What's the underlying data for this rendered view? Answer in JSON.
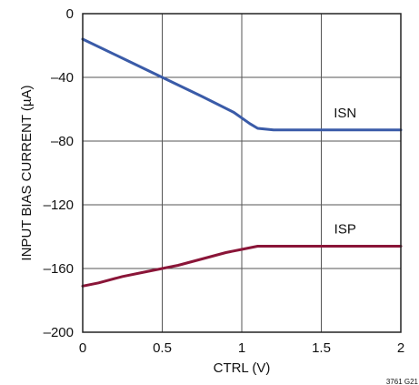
{
  "figure_id": "3761 G21",
  "chart_data": {
    "type": "line",
    "title": "",
    "xlabel": "CTRL (V)",
    "ylabel": "INPUT BIAS CURRENT (µA)",
    "xlim": [
      0,
      2
    ],
    "ylim": [
      -200,
      0
    ],
    "x_ticks": [
      0,
      0.5,
      1,
      1.5,
      2
    ],
    "x_tick_labels": [
      "0",
      "0.5",
      "1",
      "1.5",
      "2"
    ],
    "y_ticks": [
      0,
      -40,
      -80,
      -120,
      -160,
      -200
    ],
    "y_tick_labels": [
      "0",
      "–40",
      "–80",
      "–120",
      "–160",
      "–200"
    ],
    "grid": true,
    "series": [
      {
        "name": "ISN",
        "color": "#3a5ba8",
        "x": [
          0,
          0.25,
          0.5,
          0.75,
          0.95,
          1.05,
          1.1,
          1.2,
          1.5,
          2.0
        ],
        "y": [
          -16,
          -28,
          -40,
          -52,
          -62,
          -69,
          -72,
          -73,
          -73,
          -73
        ]
      },
      {
        "name": "ISP",
        "color": "#8a1538",
        "x": [
          0,
          0.1,
          0.25,
          0.4,
          0.5,
          0.6,
          0.75,
          0.9,
          1.0,
          1.1,
          1.2,
          1.5,
          2.0
        ],
        "y": [
          -171,
          -169,
          -165,
          -162,
          -160,
          -158,
          -154,
          -150,
          -148,
          -146,
          -146,
          -146,
          -146
        ]
      }
    ]
  }
}
